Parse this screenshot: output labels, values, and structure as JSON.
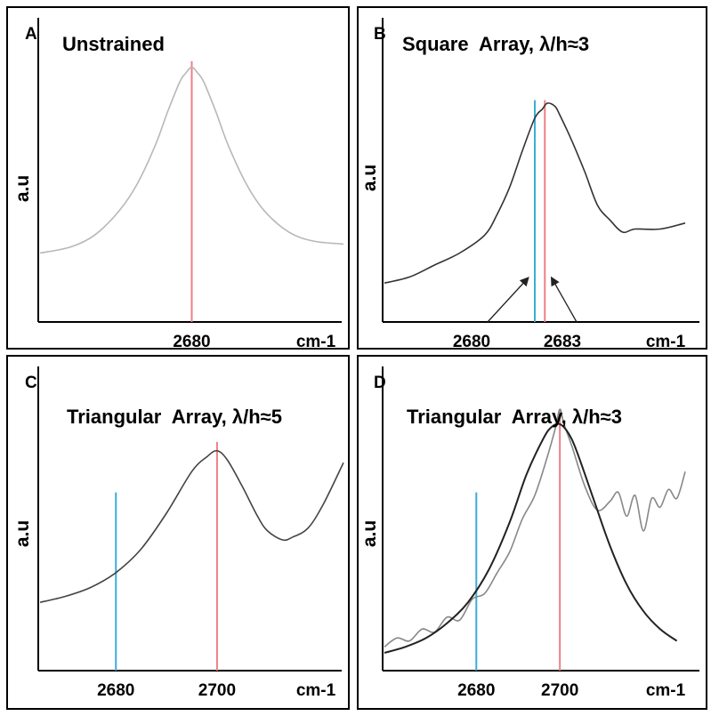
{
  "chart_data": [
    {
      "type": "line",
      "panel_letter": "A",
      "title": "Unstrained",
      "ylabel": "a.u",
      "xlabel": "cm-1",
      "xlim": [
        2655,
        2705
      ],
      "ylim": [
        0,
        1
      ],
      "x_ticks": [
        2680
      ],
      "x_tick_labels": [
        "2680"
      ],
      "series": [
        {
          "color": "#b8b8b8",
          "x": [
            2655,
            2660,
            2664,
            2668,
            2671,
            2674,
            2676,
            2678,
            2679,
            2680,
            2681,
            2682,
            2684,
            2686,
            2689,
            2692,
            2696,
            2700,
            2705
          ],
          "y": [
            0.23,
            0.25,
            0.29,
            0.37,
            0.46,
            0.59,
            0.7,
            0.8,
            0.83,
            0.85,
            0.83,
            0.8,
            0.7,
            0.59,
            0.46,
            0.37,
            0.3,
            0.27,
            0.26
          ]
        }
      ],
      "markers": [
        {
          "x": 2680,
          "color": "#ef7f86"
        }
      ]
    },
    {
      "type": "line",
      "panel_letter": "B",
      "title": "Square  Array, λ/h≈3",
      "ylabel": "a.u",
      "xlabel": "cm-1",
      "xlim": [
        2676,
        2688
      ],
      "ylim": [
        0,
        1
      ],
      "x_ticks": [
        2680,
        2683
      ],
      "x_tick_labels": [
        "2680",
        "2683"
      ],
      "series": [
        {
          "color": "#333333",
          "x": [
            2676,
            2677,
            2678,
            2679,
            2680,
            2680.5,
            2681,
            2681.5,
            2682,
            2682.3,
            2682.5,
            2682.8,
            2683,
            2683.5,
            2684,
            2684.5,
            2685,
            2685.5,
            2686,
            2687,
            2688
          ],
          "y": [
            0.13,
            0.15,
            0.19,
            0.23,
            0.29,
            0.36,
            0.45,
            0.57,
            0.68,
            0.71,
            0.73,
            0.72,
            0.69,
            0.6,
            0.5,
            0.39,
            0.34,
            0.3,
            0.31,
            0.31,
            0.33
          ]
        }
      ],
      "markers": [
        {
          "x": 2682.0,
          "color": "#3aaed8"
        },
        {
          "x": 2682.4,
          "color": "#ef7f86"
        }
      ],
      "arrow_labels": [
        "2680",
        "2683"
      ]
    },
    {
      "type": "line",
      "panel_letter": "C",
      "title": "Triangular  Array, λ/h≈5",
      "ylabel": "a.u",
      "xlabel": "cm-1",
      "xlim": [
        2665,
        2725
      ],
      "ylim": [
        0,
        1
      ],
      "x_ticks": [
        2680,
        2700
      ],
      "x_tick_labels": [
        "2680",
        "2700"
      ],
      "series": [
        {
          "color": "#444444",
          "x": [
            2665,
            2670,
            2675,
            2680,
            2685,
            2690,
            2695,
            2698,
            2700,
            2702,
            2705,
            2708,
            2710,
            2713,
            2715,
            2718,
            2721,
            2725
          ],
          "y": [
            0.23,
            0.25,
            0.28,
            0.33,
            0.41,
            0.53,
            0.67,
            0.72,
            0.74,
            0.71,
            0.62,
            0.52,
            0.47,
            0.44,
            0.45,
            0.48,
            0.56,
            0.7
          ]
        }
      ],
      "markers": [
        {
          "x": 2680,
          "color": "#3aaed8"
        },
        {
          "x": 2700,
          "color": "#ef7f86"
        }
      ]
    },
    {
      "type": "line",
      "panel_letter": "D",
      "title": "Triangular  Array, λ/h≈3",
      "ylabel": "a.u",
      "xlabel": "cm-1",
      "xlim": [
        2658,
        2730
      ],
      "ylim": [
        0,
        1
      ],
      "x_ticks": [
        2680,
        2700
      ],
      "x_tick_labels": [
        "2680",
        "2700"
      ],
      "series": [
        {
          "color": "#888888",
          "x": [
            2658,
            2661,
            2664,
            2667,
            2670,
            2673,
            2676,
            2679,
            2682,
            2685,
            2688,
            2691,
            2694,
            2697,
            2699,
            2700,
            2701,
            2703,
            2706,
            2709,
            2712,
            2714,
            2716,
            2718,
            2720,
            2722,
            2724,
            2726,
            2728,
            2730
          ],
          "y": [
            0.08,
            0.11,
            0.1,
            0.14,
            0.13,
            0.18,
            0.17,
            0.24,
            0.26,
            0.33,
            0.4,
            0.51,
            0.59,
            0.72,
            0.82,
            0.88,
            0.83,
            0.75,
            0.62,
            0.54,
            0.57,
            0.6,
            0.52,
            0.59,
            0.47,
            0.58,
            0.55,
            0.61,
            0.58,
            0.67
          ]
        },
        {
          "color": "#222222",
          "x": [
            2658,
            2663,
            2668,
            2673,
            2678,
            2683,
            2688,
            2692,
            2696,
            2698,
            2700,
            2702,
            2704,
            2708,
            2712,
            2716,
            2720,
            2724,
            2728
          ],
          "y": [
            0.06,
            0.08,
            0.11,
            0.16,
            0.23,
            0.34,
            0.5,
            0.66,
            0.78,
            0.82,
            0.83,
            0.8,
            0.74,
            0.58,
            0.42,
            0.29,
            0.2,
            0.14,
            0.1
          ]
        }
      ],
      "markers": [
        {
          "x": 2680,
          "color": "#3aaed8"
        },
        {
          "x": 2700,
          "color": "#ef7f86"
        }
      ]
    }
  ]
}
